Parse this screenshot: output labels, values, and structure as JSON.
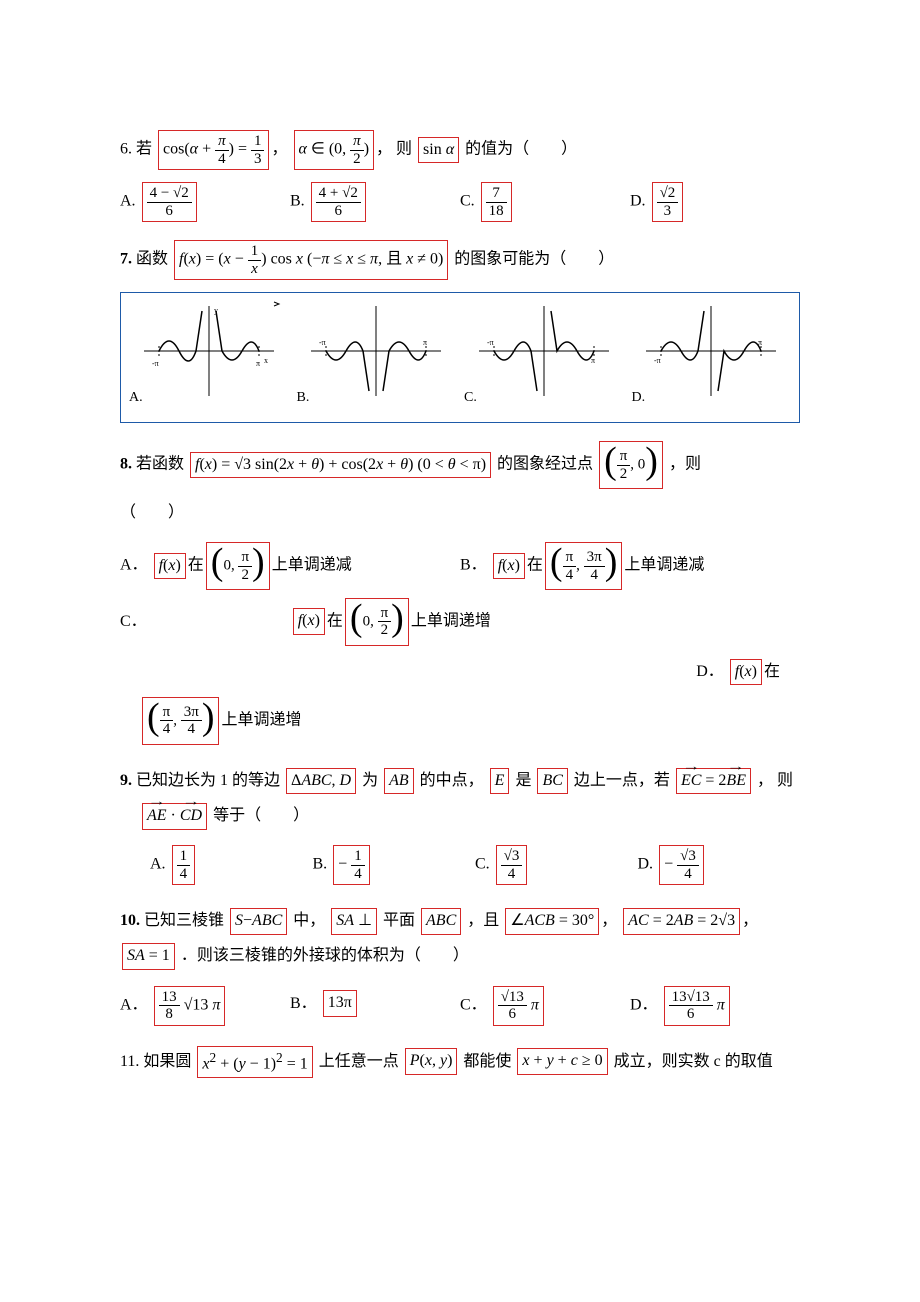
{
  "q6": {
    "num": "6.",
    "stem_prefix": "若",
    "expr1_html": "cos(<span class='it'>α</span> + <span class='frac'><span class='num'><span class='it'>π</span></span><span class='den'>4</span></span>) = <span class='frac'><span class='num'>1</span><span class='den'>3</span></span>",
    "comma1": "，",
    "expr2_html": "<span class='it'>α</span> ∈ (0, <span class='frac'><span class='num'><span class='it'>π</span></span><span class='den'>2</span></span>)",
    "comma2": "，",
    "stem_mid": "则",
    "expr3_html": "sin <span class='it'>α</span>",
    "stem_suffix": "的值为（　　）",
    "optA_label": "A.",
    "optA_html": "<span class='frac'><span class='num'>4 − √2</span><span class='den'>6</span></span>",
    "optB_label": "B.",
    "optB_html": "<span class='frac'><span class='num'>4 + √2</span><span class='den'>6</span></span>",
    "optC_label": "C.",
    "optC_html": "<span class='frac'><span class='num'>7</span><span class='den'>18</span></span>",
    "optD_label": "D.",
    "optD_html": "<span class='frac'><span class='num'>√2</span><span class='den'>3</span></span>"
  },
  "q7": {
    "num": "7.",
    "stem_prefix": "函数",
    "expr_html": "<span class='it'>f</span>(<span class='it'>x</span>) = (<span class='it'>x</span> − <span class='frac'><span class='num'>1</span><span class='den it'>x</span></span>) cos <span class='it'>x</span> (−<span class='it'>π</span> ≤ <span class='it'>x</span> ≤ <span class='it'>π</span>, 且 <span class='it'>x</span> ≠ 0)",
    "stem_suffix": "的图象可能为（　　）",
    "labelA": "A.",
    "labelB": "B.",
    "labelC": "C.",
    "labelD": "D."
  },
  "q8": {
    "num": "8.",
    "stem_prefix": "若函数",
    "expr1_html": "<span class='it'>f</span>(<span class='it'>x</span>) = √3 sin(2<span class='it'>x</span> + <span class='it'>θ</span>) + cos(2<span class='it'>x</span> + <span class='it'>θ</span>) (0 &lt; <span class='it'>θ</span> &lt; π)",
    "stem_mid": "的图象经过点",
    "expr2_html": "<span class='bigparen'><span class='lp'>(</span><span class='content'><span class='frac'><span class='num'>π</span><span class='den'>2</span></span>, 0</span><span class='rp'>)</span></span>",
    "stem_suffix": "，则",
    "paren": "（　　）",
    "optA_label": "A．",
    "optA_pre": "在",
    "optA_fx": "<span class='it'>f</span>(<span class='it'>x</span>)",
    "optA_int": "<span class='bigparen'><span class='lp'>(</span><span class='content'>0, <span class='frac'><span class='num'>π</span><span class='den'>2</span></span></span><span class='rp'>)</span></span>",
    "optA_suf": "上单调递减",
    "optB_label": "B．",
    "optB_fx": "<span class='it'>f</span>(<span class='it'>x</span>)",
    "optB_pre": "在",
    "optB_int": "<span class='bigparen'><span class='lp'>(</span><span class='content'><span class='frac'><span class='num'>π</span><span class='den'>4</span></span>, <span class='frac'><span class='num'>3π</span><span class='den'>4</span></span></span><span class='rp'>)</span></span>",
    "optB_suf": "上单调递减",
    "optC_label": "C．",
    "optC_fx": "<span class='it'>f</span>(<span class='it'>x</span>)",
    "optC_pre": "在",
    "optC_int": "<span class='bigparen'><span class='lp'>(</span><span class='content'>0, <span class='frac'><span class='num'>π</span><span class='den'>2</span></span></span><span class='rp'>)</span></span>",
    "optC_suf": "上单调递增",
    "optD_label": "D．",
    "optD_fx": "<span class='it'>f</span>(<span class='it'>x</span>)",
    "optD_pre": "在",
    "optD_int": "<span class='bigparen'><span class='lp'>(</span><span class='content'><span class='frac'><span class='num'>π</span><span class='den'>4</span></span>, <span class='frac'><span class='num'>3π</span><span class='den'>4</span></span></span><span class='rp'>)</span></span>",
    "optD_suf": "上单调递增"
  },
  "q9": {
    "num": "9.",
    "stem_a": "已知边长为 1 的等边",
    "expr1_html": "Δ<span class='it'>ABC</span>, <span class='it'>D</span>",
    "stem_b": "为",
    "expr2_html": "<span class='it'>AB</span>",
    "stem_c": "的中点，",
    "expr3_html": "<span class='it'>E</span>",
    "stem_d": "是",
    "expr4_html": "<span class='it'>BC</span>",
    "stem_e": "边上一点，若",
    "expr5_html": "<span class='vec it'>EC</span> = 2<span class='vec it'>BE</span>",
    "stem_f": "， 则",
    "expr6_html": "<span class='vec it'>AE</span> · <span class='vec it'>CD</span>",
    "stem_g": "等于（　　）",
    "optA_label": "A.",
    "optA_html": "<span class='frac'><span class='num'>1</span><span class='den'>4</span></span>",
    "optB_label": "B.",
    "optB_html": "− <span class='frac'><span class='num'>1</span><span class='den'>4</span></span>",
    "optC_label": "C.",
    "optC_html": "<span class='frac'><span class='num'>√3</span><span class='den'>4</span></span>",
    "optD_label": "D.",
    "optD_html": "− <span class='frac'><span class='num'>√3</span><span class='den'>4</span></span>"
  },
  "q10": {
    "num": "10.",
    "stem_a": "已知三棱锥",
    "expr1_html": "<span class='it'>S</span>−<span class='it'>ABC</span>",
    "stem_b": "中，",
    "expr2_html": "<span class='it'>SA</span> ⊥",
    "stem_c": "平面",
    "expr3_html": "<span class='it'>ABC</span>",
    "stem_d": "，且",
    "expr4_html": "∠<span class='it'>ACB</span> = 30°",
    "comma": "，",
    "expr5_html": "<span class='it'>AC</span> = 2<span class='it'>AB</span> = 2√3",
    "sep": "，",
    "expr6_html": "<span class='it'>SA</span> = 1",
    "stem_e": "．则该三棱锥的外接球的体积为（　　）",
    "optA_label": "A．",
    "optA_html": "<span class='frac'><span class='num'>13</span><span class='den'>8</span></span> √13 <span class='it'>π</span>",
    "optB_label": "B．",
    "optB_html": "13π",
    "optC_label": "C．",
    "optC_html": "<span class='frac'><span class='num'>√13</span><span class='den'>6</span></span> <span class='it'>π</span>",
    "optD_label": "D．",
    "optD_html": "<span class='frac'><span class='num'>13√13</span><span class='den'>6</span></span> <span class='it'>π</span>"
  },
  "q11": {
    "num": "11.",
    "stem_a": "如果圆",
    "expr1_html": "<span class='it'>x</span><sup>2</sup> + (<span class='it'>y</span> − 1)<sup>2</sup> = 1",
    "stem_b": "上任意一点",
    "expr2_html": "<span class='it'>P</span>(<span class='it'>x</span>, <span class='it'>y</span>)",
    "stem_c": "都能使",
    "expr3_html": "<span class='it'>x</span> + <span class='it'>y</span> + <span class='it'>c</span> ≥ 0",
    "stem_d": "成立，则实数 c 的取值"
  },
  "colors": {
    "box": "#d62828",
    "graphbox": "#1e5aa8",
    "text": "#000000",
    "bg": "#ffffff"
  }
}
